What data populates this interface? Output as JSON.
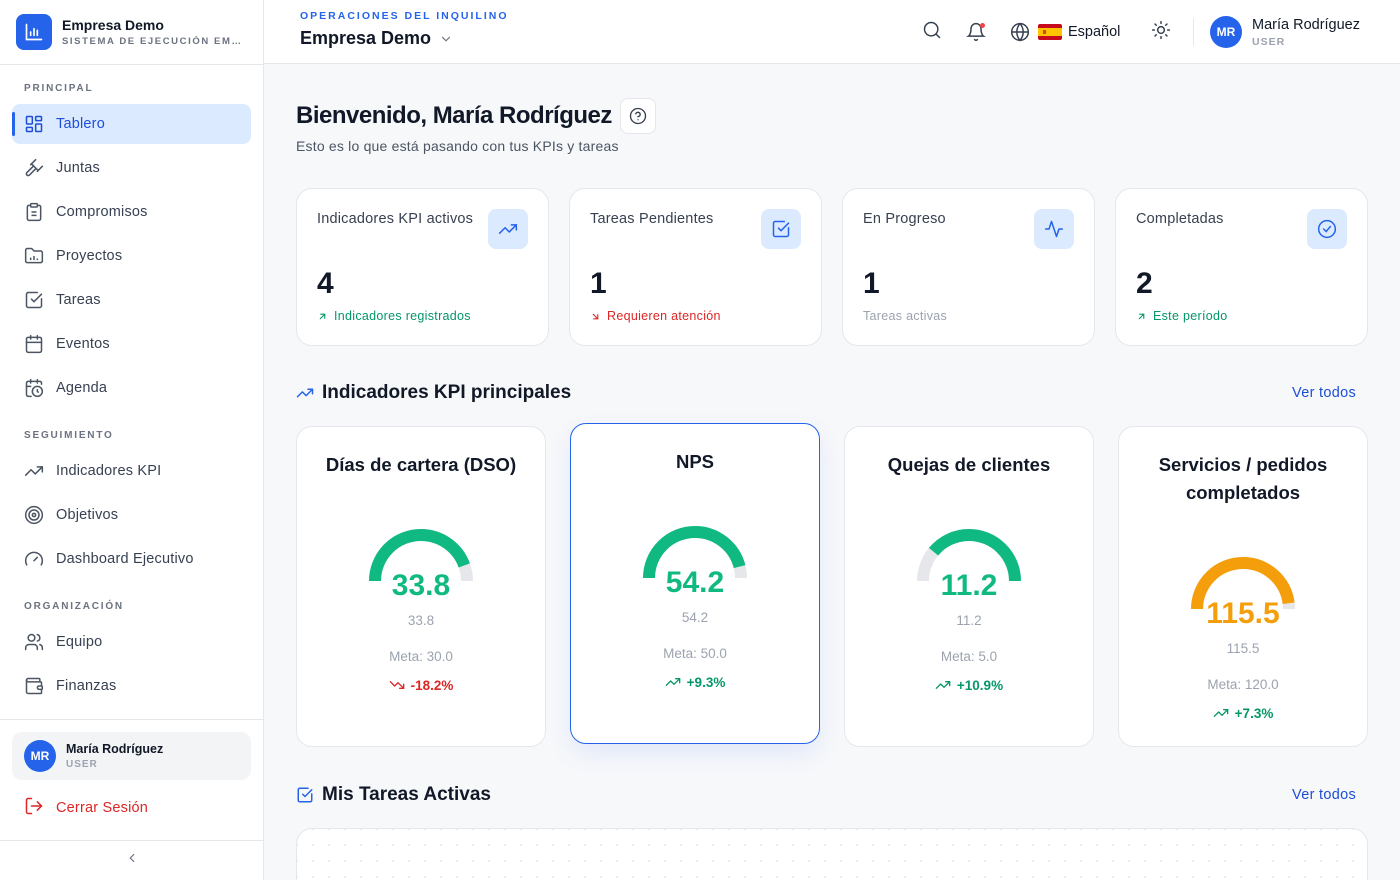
{
  "brand": {
    "name": "Empresa Demo",
    "subtitle": "SISTEMA DE EJECUCIÓN EMPRESARIAL"
  },
  "sidebar": {
    "sections": [
      {
        "label": "PRINCIPAL"
      },
      {
        "label": "SEGUIMIENTO"
      },
      {
        "label": "ORGANIZACIÓN"
      }
    ],
    "items": [
      {
        "label": "Tablero",
        "icon": "dashboard-icon",
        "active": true
      },
      {
        "label": "Juntas",
        "icon": "gavel-icon"
      },
      {
        "label": "Compromisos",
        "icon": "clipboard-icon"
      },
      {
        "label": "Proyectos",
        "icon": "folder-icon"
      },
      {
        "label": "Tareas",
        "icon": "checkbox-icon"
      },
      {
        "label": "Eventos",
        "icon": "calendar-icon"
      },
      {
        "label": "Agenda",
        "icon": "calendar-clock-icon"
      },
      {
        "label": "Indicadores KPI",
        "icon": "trending-up-icon"
      },
      {
        "label": "Objetivos",
        "icon": "target-icon"
      },
      {
        "label": "Dashboard Ejecutivo",
        "icon": "gauge-icon"
      },
      {
        "label": "Equipo",
        "icon": "users-icon"
      },
      {
        "label": "Finanzas",
        "icon": "wallet-icon"
      }
    ],
    "user": {
      "initials": "MR",
      "name": "María Rodríguez",
      "role": "USER"
    },
    "logout_label": "Cerrar Sesión"
  },
  "header": {
    "tenant_label": "OPERACIONES DEL INQUILINO",
    "tenant_name": "Empresa Demo",
    "language": "Español",
    "user": {
      "initials": "MR",
      "name": "María Rodríguez",
      "role": "USER"
    }
  },
  "main": {
    "welcome": "Bienvenido, María Rodríguez",
    "subtitle": "Esto es lo que está pasando con tus KPIs y tareas",
    "stats": [
      {
        "title": "Indicadores KPI activos",
        "value": "4",
        "note": "Indicadores registrados",
        "trend": "up",
        "icon": "trending-up-icon"
      },
      {
        "title": "Tareas Pendientes",
        "value": "1",
        "note": "Requieren atención",
        "trend": "down",
        "icon": "checkbox-icon"
      },
      {
        "title": "En Progreso",
        "value": "1",
        "note": "Tareas activas",
        "trend": "none",
        "icon": "activity-icon"
      },
      {
        "title": "Completadas",
        "value": "2",
        "note": "Este período",
        "trend": "up",
        "icon": "check-circle-icon"
      }
    ],
    "kpi_section": {
      "title": "Indicadores KPI principales",
      "see_all": "Ver todos"
    },
    "kpis": [
      {
        "title": "Días de cartera (DSO)",
        "value": "33.8",
        "sub": "33.8",
        "meta": "Meta: 30.0",
        "delta": "-18.2%",
        "trend": "down",
        "color": "#10b981",
        "fill": 0.89
      },
      {
        "title": "NPS",
        "value": "54.2",
        "sub": "54.2",
        "meta": "Meta: 50.0",
        "delta": "+9.3%",
        "trend": "up",
        "color": "#10b981",
        "fill": 0.92
      },
      {
        "title": "Quejas de clientes",
        "value": "11.2",
        "sub": "11.2",
        "meta": "Meta: 5.0",
        "delta": "+10.9%",
        "trend": "up",
        "color": "#10b981",
        "fill": 0.78
      },
      {
        "title": "Servicios / pedidos completados",
        "value": "115.5",
        "sub": "115.5",
        "meta": "Meta: 120.0",
        "delta": "+7.3%",
        "trend": "up",
        "color": "#f59e0b",
        "fill": 0.96
      }
    ],
    "tasks_section": {
      "title": "Mis Tareas Activas",
      "see_all": "Ver todos"
    }
  },
  "colors": {
    "accent": "#2563eb",
    "success": "#10b981",
    "danger": "#dc2626",
    "warning": "#f59e0b"
  }
}
